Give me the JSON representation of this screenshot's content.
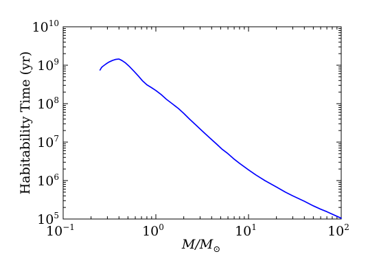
{
  "chart_data": {
    "type": "line",
    "title": "",
    "xlabel": {
      "main": "M/M",
      "subscript": "⊙"
    },
    "ylabel": "Habitability Time (yr)",
    "xscale": "log",
    "yscale": "log",
    "xlim": [
      0.1,
      100
    ],
    "ylim": [
      100000,
      10000000000
    ],
    "grid": false,
    "legend": "none",
    "line_color": "#0000ff",
    "x_ticks": [
      {
        "base": "10",
        "exp": "−1"
      },
      {
        "base": "10",
        "exp": "0"
      },
      {
        "base": "10",
        "exp": "1"
      },
      {
        "base": "10",
        "exp": "2"
      }
    ],
    "y_ticks": [
      {
        "base": "10",
        "exp": "5"
      },
      {
        "base": "10",
        "exp": "6"
      },
      {
        "base": "10",
        "exp": "7"
      },
      {
        "base": "10",
        "exp": "8"
      },
      {
        "base": "10",
        "exp": "9"
      },
      {
        "base": "10",
        "exp": "10"
      }
    ],
    "series": [
      {
        "x": [
          0.25,
          0.26,
          0.27,
          0.29,
          0.31,
          0.34,
          0.37,
          0.4,
          0.43,
          0.47,
          0.52,
          0.58,
          0.65,
          0.72,
          0.8,
          0.9,
          1.0,
          1.15,
          1.3,
          1.5,
          1.75,
          2.0,
          2.3,
          2.7,
          3.2,
          3.8,
          4.5,
          5.2,
          6.0,
          7.0,
          8.0,
          10.0,
          12.0,
          15.0,
          20.0,
          25.0,
          30.0,
          40.0,
          50.0,
          60.0,
          70.0,
          85.0,
          100.0
        ],
        "y": [
          750000000,
          880000000,
          950000000,
          1080000000,
          1200000000,
          1330000000,
          1420000000,
          1450000000,
          1330000000,
          1150000000,
          920000000,
          700000000,
          520000000,
          390000000,
          310000000,
          260000000,
          220000000,
          170000000,
          130000000,
          100000000,
          75000000,
          56000000,
          40000000,
          28000000,
          19000000,
          13000000,
          9000000,
          6500000,
          5000000,
          3600000,
          2800000,
          1900000,
          1400000,
          1000000,
          680000,
          500000,
          400000,
          290000,
          220000,
          180000,
          155000,
          125000,
          105000
        ]
      }
    ]
  }
}
